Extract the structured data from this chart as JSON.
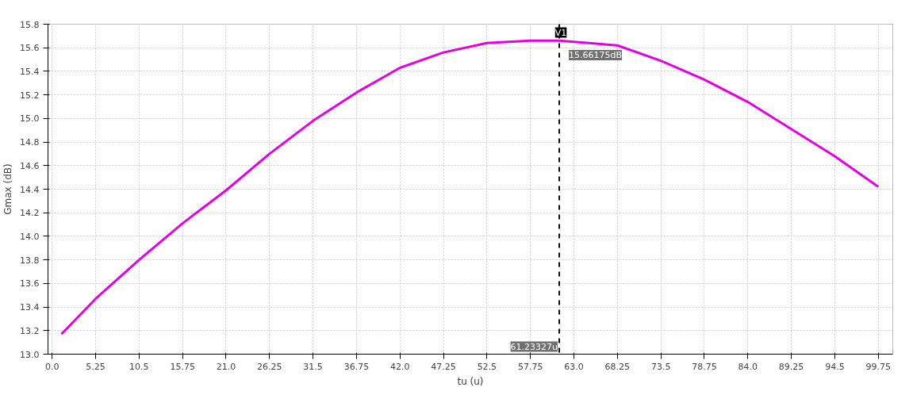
{
  "chart_data": {
    "type": "line",
    "xlabel": "tu (u)",
    "ylabel": "Gmax (dB)",
    "x": [
      1.13,
      5.25,
      10.5,
      15.75,
      21.0,
      26.25,
      31.5,
      36.75,
      42.0,
      47.25,
      52.5,
      57.75,
      61.23327,
      68.25,
      73.5,
      78.75,
      84.0,
      89.25,
      94.5,
      99.75
    ],
    "series": [
      {
        "color": "#e000e0",
        "values": [
          13.17,
          13.47,
          13.8,
          14.11,
          14.39,
          14.7,
          14.98,
          15.22,
          15.43,
          15.56,
          15.64,
          15.66,
          15.66,
          15.62,
          15.49,
          15.33,
          15.14,
          14.91,
          14.68,
          14.42
        ]
      }
    ],
    "xlim": [
      -0.5,
      101.5
    ],
    "ylim": [
      13.0,
      15.8
    ],
    "xticks": [
      {
        "value": 0,
        "label": "0.0"
      },
      5.25,
      10.5,
      15.75,
      {
        "value": 21,
        "label": "21.0"
      },
      26.25,
      31.5,
      36.75,
      {
        "value": 42,
        "label": "42.0"
      },
      47.25,
      52.5,
      57.75,
      {
        "value": 63,
        "label": "63.0"
      },
      68.25,
      73.5,
      78.75,
      {
        "value": 84,
        "label": "84.0"
      },
      89.25,
      94.5,
      99.75
    ],
    "yticks": [
      {
        "value": 13,
        "label": "13.0"
      },
      13.2,
      13.4,
      13.6,
      13.8,
      {
        "value": 14,
        "label": "14.0"
      },
      14.2,
      14.4,
      14.6,
      14.8,
      {
        "value": 15,
        "label": "15.0"
      },
      15.2,
      15.4,
      15.6,
      15.8
    ],
    "grid": true,
    "marker": "none",
    "line_style": "solid",
    "ref_lines": [
      {
        "axis": "x",
        "value": 61.23327,
        "label": "V1",
        "color": "#000000",
        "line_style": "dashed"
      }
    ],
    "annotations": [
      {
        "text": "15.66175dB",
        "x": 61.23327,
        "y": 15.66175
      },
      {
        "text": "61.23327u",
        "x": 61.23327,
        "y": 13.0
      }
    ]
  }
}
